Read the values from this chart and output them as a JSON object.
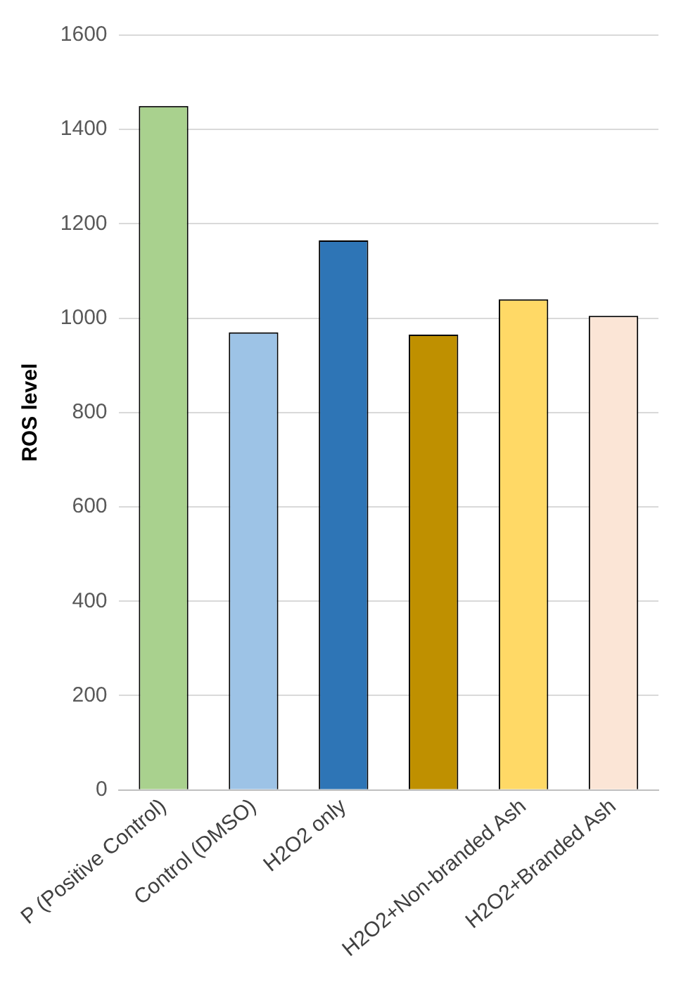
{
  "chart_data": {
    "type": "bar",
    "ylabel": "ROS level",
    "categories": [
      "P (Positive Control)",
      "Control (DMSO)",
      "H2O2 only",
      null,
      "H2O2+Non-branded Ash",
      "H2O2+Branded Ash"
    ],
    "values": [
      1450,
      970,
      1165,
      965,
      1040,
      1005
    ],
    "colors": [
      "#a9d18e",
      "#9dc3e6",
      "#2e75b6",
      "#bf9000",
      "#ffd966",
      "#fbe5d6"
    ],
    "ylim": [
      0,
      1600
    ],
    "yticks": [
      0,
      200,
      400,
      600,
      800,
      1000,
      1200,
      1400,
      1600
    ],
    "grid": "y"
  }
}
